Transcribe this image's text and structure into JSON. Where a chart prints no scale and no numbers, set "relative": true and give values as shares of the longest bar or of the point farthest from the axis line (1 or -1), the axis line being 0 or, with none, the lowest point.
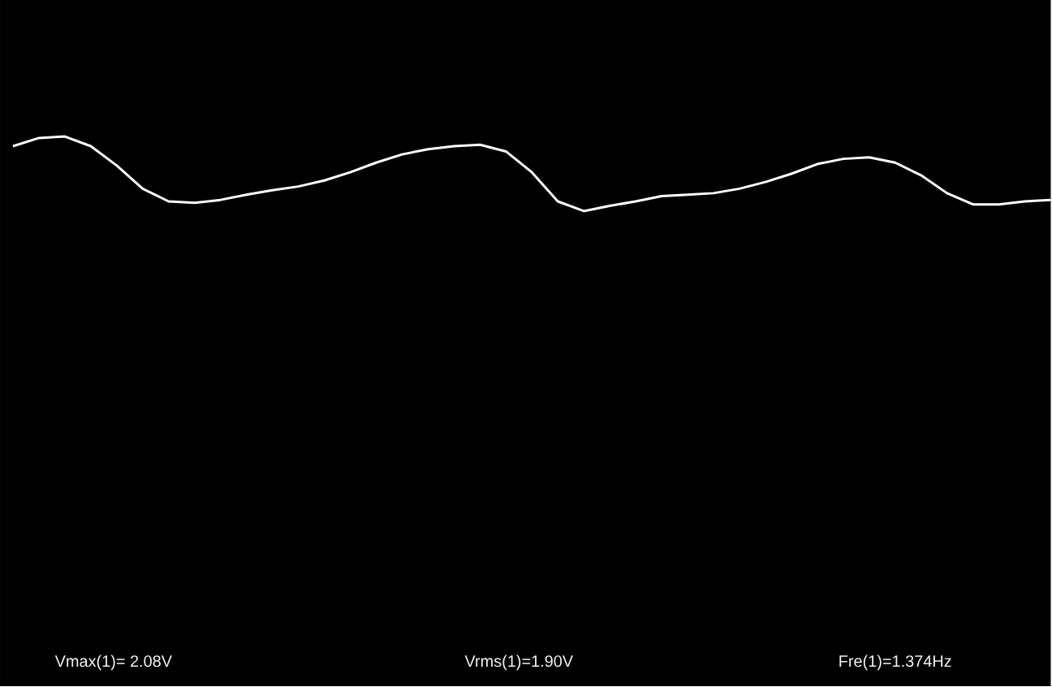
{
  "chart_data": {
    "type": "line",
    "relative": true,
    "categories": [
      null,
      null,
      null,
      null,
      null,
      null,
      null,
      null,
      null,
      null,
      null,
      null,
      null,
      null,
      null,
      null,
      null,
      null,
      null,
      null,
      null,
      null,
      null,
      null,
      null,
      null,
      null,
      null,
      null,
      null,
      null,
      null,
      null,
      null,
      null,
      null,
      null,
      null,
      null,
      null,
      null
    ],
    "series": [
      {
        "color": "#ffffff",
        "values": [
          0.87,
          0.98,
          1.0,
          0.87,
          0.61,
          0.3,
          0.13,
          0.11,
          0.15,
          0.22,
          0.28,
          0.33,
          0.41,
          0.52,
          0.65,
          0.76,
          0.83,
          0.87,
          0.89,
          0.8,
          0.52,
          0.13,
          0.0,
          0.07,
          0.13,
          0.2,
          0.22,
          0.24,
          0.3,
          0.39,
          0.5,
          0.63,
          0.7,
          0.72,
          0.65,
          0.48,
          0.24,
          0.09,
          0.09,
          0.13,
          0.15
        ]
      }
    ],
    "annotations": [
      "Vmax(1)= 2.08V",
      "Vrms(1)=1.90V",
      "Fre(1)=1.374Hz"
    ]
  }
}
